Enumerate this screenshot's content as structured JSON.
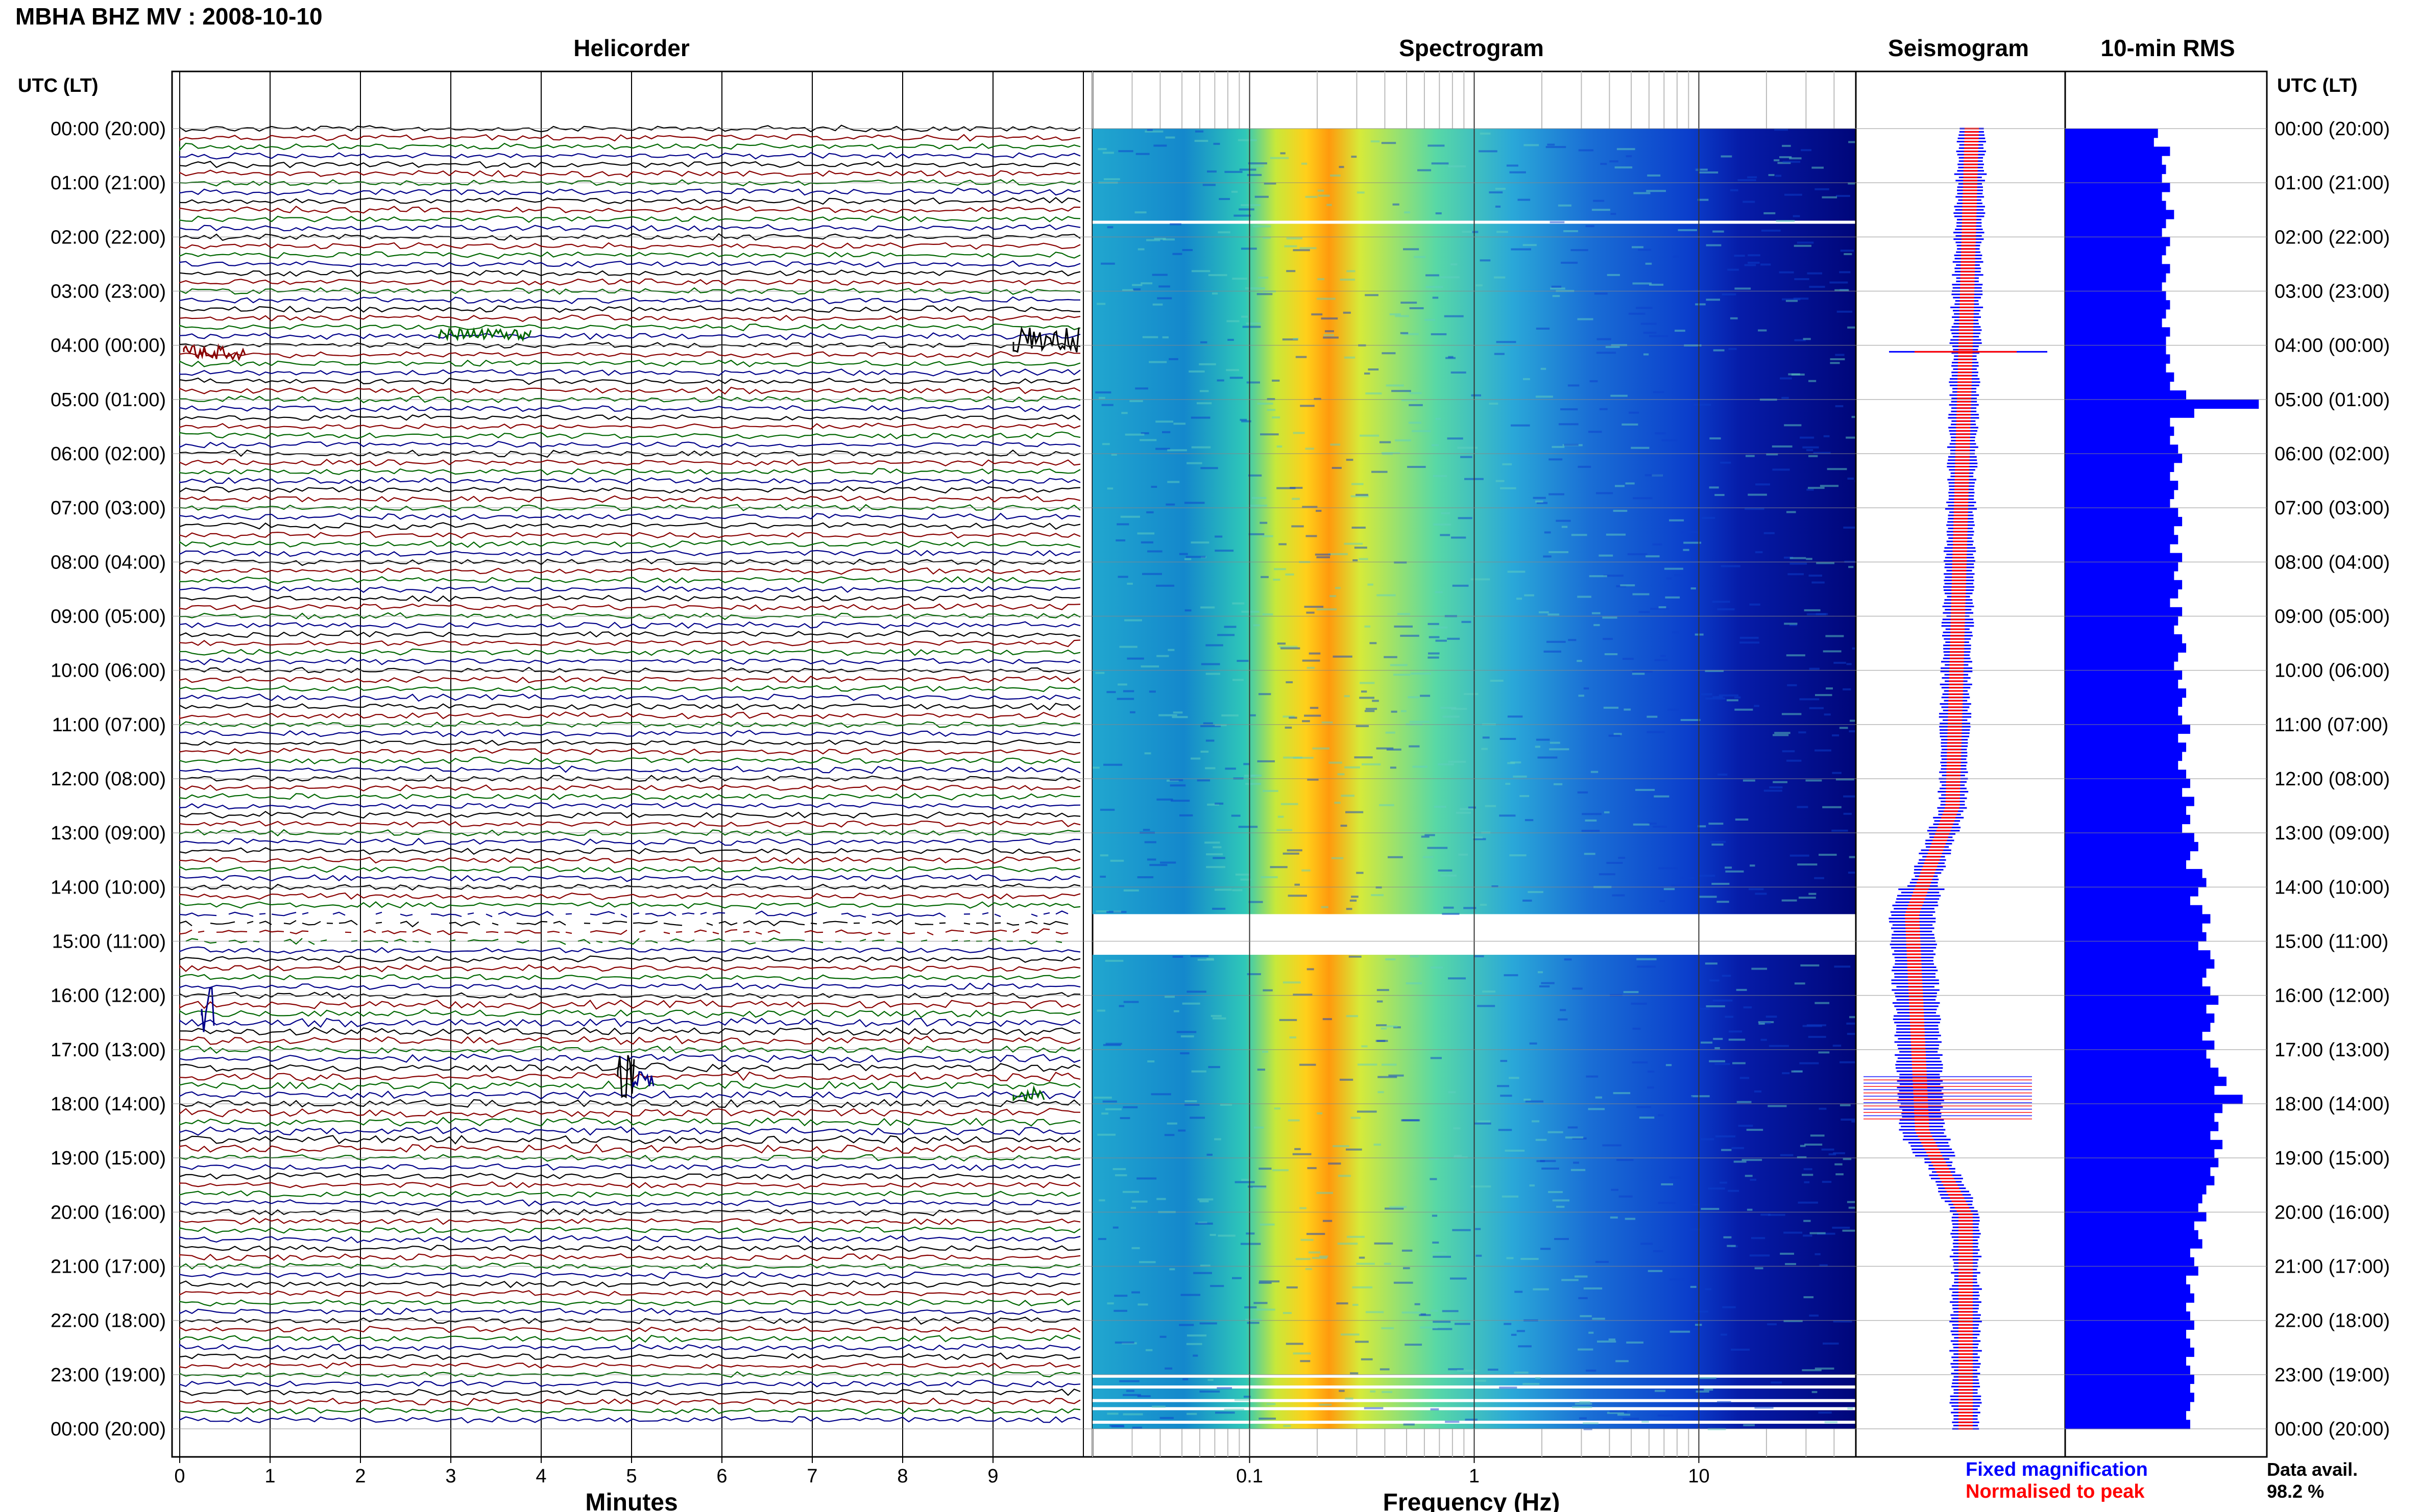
{
  "header": {
    "title": "MBHA BHZ MV : 2008-10-10",
    "utc_label_left": "UTC (LT)",
    "utc_label_right": "UTC (LT)"
  },
  "panels": {
    "helicorder": "Helicorder",
    "spectrogram": "Spectrogram",
    "seismogram": "Seismogram",
    "rms": "10-min RMS"
  },
  "axes": {
    "helicorder_xlabel": "Minutes",
    "spectrogram_xlabel": "Frequency (Hz)"
  },
  "legend": {
    "fixed": "Fixed magnification",
    "normalised": "Normalised to peak",
    "fixed_color": "#0000ff",
    "normalised_color": "#ff0000"
  },
  "data_avail": {
    "label": "Data avail.",
    "value": "98.2 %"
  },
  "colors": {
    "trace_colors": [
      "#000000",
      "#880000",
      "#006600",
      "#000088"
    ],
    "rms_bar": "#0000ff",
    "spectrogram_low": "#00008b",
    "spectrogram_high": "#ff3300"
  },
  "chart_data": {
    "type": "heatmap",
    "time_labels": [
      "00:00 (20:00)",
      "01:00 (21:00)",
      "02:00 (22:00)",
      "03:00 (23:00)",
      "04:00 (00:00)",
      "05:00 (01:00)",
      "06:00 (02:00)",
      "07:00 (03:00)",
      "08:00 (04:00)",
      "09:00 (05:00)",
      "10:00 (06:00)",
      "11:00 (07:00)",
      "12:00 (08:00)",
      "13:00 (09:00)",
      "14:00 (10:00)",
      "15:00 (11:00)",
      "16:00 (12:00)",
      "17:00 (13:00)",
      "18:00 (14:00)",
      "19:00 (15:00)",
      "20:00 (16:00)",
      "21:00 (17:00)",
      "22:00 (18:00)",
      "23:00 (19:00)",
      "00:00 (20:00)"
    ],
    "helicorder_ticks": [
      "0",
      "1",
      "2",
      "3",
      "4",
      "5",
      "6",
      "7",
      "8",
      "9"
    ],
    "minutes_range": [
      0,
      10
    ],
    "frequency_ticks": [
      "0.1",
      "1",
      "10"
    ],
    "frequency_range_hz": [
      0.02,
      50
    ],
    "frequency_log_scale": true,
    "spectral_peak_hz": 0.22,
    "data_gaps_utc": [
      "14:30-15:15",
      "23:00-23:45"
    ],
    "rms_10min": [
      2.3,
      2.2,
      2.6,
      2.4,
      2.5,
      2.4,
      2.6,
      2.4,
      2.5,
      2.7,
      2.5,
      2.4,
      2.6,
      2.5,
      2.4,
      2.6,
      2.5,
      2.4,
      2.5,
      2.6,
      2.5,
      2.4,
      2.6,
      2.5,
      2.5,
      2.6,
      2.5,
      2.7,
      2.6,
      3.0,
      4.8,
      3.2,
      2.6,
      2.7,
      2.6,
      2.8,
      2.9,
      2.7,
      2.6,
      2.8,
      2.7,
      2.6,
      2.8,
      2.9,
      2.7,
      2.8,
      2.6,
      2.9,
      2.8,
      2.7,
      2.9,
      2.8,
      2.6,
      2.9,
      2.8,
      2.7,
      2.9,
      3.0,
      2.8,
      2.7,
      2.9,
      2.8,
      3.0,
      2.9,
      2.8,
      2.9,
      3.1,
      2.8,
      3.0,
      2.9,
      2.8,
      3.0,
      3.1,
      2.9,
      3.2,
      3.0,
      3.1,
      2.9,
      3.2,
      3.3,
      3.1,
      3.0,
      3.4,
      3.5,
      3.3,
      3.1,
      3.4,
      3.6,
      3.4,
      3.5,
      3.3,
      3.6,
      3.7,
      3.5,
      3.4,
      3.6,
      3.8,
      3.5,
      3.7,
      3.6,
      3.4,
      3.7,
      3.5,
      3.6,
      3.8,
      4.0,
      3.7,
      4.4,
      3.9,
      3.7,
      3.8,
      3.6,
      3.9,
      3.7,
      3.8,
      3.6,
      3.7,
      3.5,
      3.4,
      3.3,
      3.5,
      3.2,
      3.3,
      3.4,
      3.1,
      3.2,
      3.3,
      3.0,
      3.1,
      3.2,
      3.0,
      3.1,
      3.2,
      3.0,
      3.1,
      3.2,
      3.0,
      3.1,
      3.2,
      3.1,
      3.2,
      3.1,
      3.0,
      3.1
    ],
    "rms_xlim": [
      0,
      5
    ]
  }
}
